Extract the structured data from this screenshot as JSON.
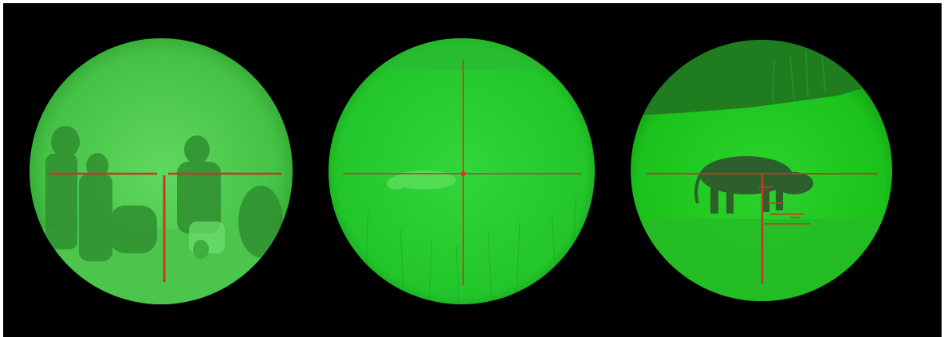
{
  "image": {
    "description_free": true,
    "scopes": [
      {
        "reticle": "duplex-post",
        "subject": "people-at-fire",
        "tint": "#3fbf3f"
      },
      {
        "reticle": "fine-crosshair-dot",
        "subject": "animal-in-grass",
        "tint": "#25c82f"
      },
      {
        "reticle": "mil-dot-ladder",
        "subject": "wild-boar",
        "tint": "#1fc41f"
      }
    ],
    "colors": {
      "background": "#000000",
      "reticle": "#c0392b",
      "nv_green_light": "#4fd14f",
      "nv_green_dark": "#1a7a1a"
    }
  }
}
